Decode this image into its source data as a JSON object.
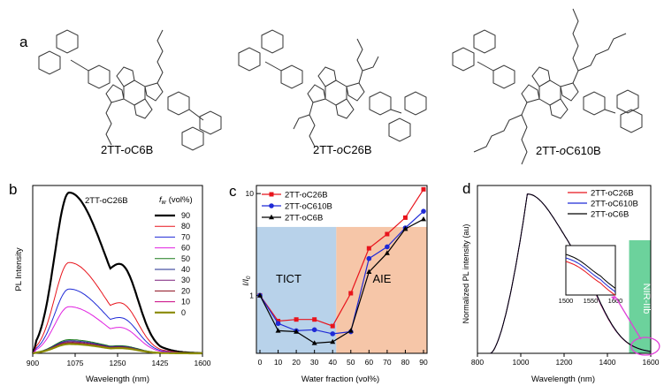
{
  "panels": {
    "a": "a",
    "b": "b",
    "c": "c",
    "d": "d"
  },
  "compounds": {
    "c1": {
      "prefix": "2TT-",
      "italic": "o",
      "suffix": "C6B"
    },
    "c2": {
      "prefix": "2TT-",
      "italic": "o",
      "suffix": "C26B"
    },
    "c3": {
      "prefix": "2TT-",
      "italic": "o",
      "suffix": "C610B"
    }
  },
  "colors": {
    "red": "#e8141c",
    "blue": "#1f2ad6",
    "black": "#000000",
    "tict_bg": "#b8d2ea",
    "aie_bg": "#f6c6a8",
    "nir_bg": "#6cd29c",
    "pink": "#e040d8"
  },
  "chart_data": [
    {
      "id": "b",
      "type": "line",
      "title": "2TT-oC26B",
      "xlabel": "Wavelength (nm)",
      "ylabel": "PL Intensity",
      "xlim": [
        900,
        1600
      ],
      "ylim": [
        0,
        1
      ],
      "xticks": [
        "900",
        "1075",
        "1250",
        "1425",
        "1600"
      ],
      "legend_title_prefix": "f",
      "legend_title_sub": "w",
      "legend_title_suffix": "(vol%)",
      "series": [
        {
          "name": "90",
          "color": "#000000",
          "width": 2.2,
          "peak": 1.0
        },
        {
          "name": "80",
          "color": "#e8141c",
          "width": 1,
          "peak": 0.565
        },
        {
          "name": "70",
          "color": "#1f2ad6",
          "width": 1,
          "peak": 0.4
        },
        {
          "name": "60",
          "color": "#e020e0",
          "width": 1,
          "peak": 0.29
        },
        {
          "name": "50",
          "color": "#1a7a1a",
          "width": 1,
          "peak": 0.085
        },
        {
          "name": "40",
          "color": "#1c2a8c",
          "width": 1,
          "peak": 0.078
        },
        {
          "name": "30",
          "color": "#7a1f7a",
          "width": 1,
          "peak": 0.072
        },
        {
          "name": "20",
          "color": "#8b0a1a",
          "width": 1,
          "peak": 0.066
        },
        {
          "name": "10",
          "color": "#c80080",
          "width": 1,
          "peak": 0.062
        },
        {
          "name": "0",
          "color": "#8a8a00",
          "width": 2.2,
          "peak": 0.058
        }
      ]
    },
    {
      "id": "c",
      "type": "line",
      "xlabel": "Water fraction (vol%)",
      "ylabel_main": "I/I",
      "ylabel_sub": "0",
      "xlim": [
        0,
        90
      ],
      "ylim": [
        0.27,
        12
      ],
      "yscale": "log",
      "xticks": [
        "0",
        "10",
        "20",
        "30",
        "40",
        "50",
        "60",
        "70",
        "80",
        "90"
      ],
      "yticks": [
        "1",
        "10"
      ],
      "regions": [
        {
          "label": "TICT",
          "from": 0,
          "to": 42,
          "color": "#b8d2ea"
        },
        {
          "label": "AIE",
          "from": 42,
          "to": 90,
          "color": "#f6c6a8"
        }
      ],
      "x": [
        0,
        10,
        20,
        30,
        40,
        50,
        60,
        70,
        80,
        90
      ],
      "series": [
        {
          "name": "2TT-oC26B",
          "color": "#e8141c",
          "marker": "square",
          "values": [
            1.0,
            0.56,
            0.58,
            0.58,
            0.5,
            1.05,
            2.9,
            4.0,
            5.8,
            11.0
          ]
        },
        {
          "name": "2TT-oC610B",
          "color": "#1f2ad6",
          "marker": "circle",
          "values": [
            1.0,
            0.53,
            0.45,
            0.46,
            0.42,
            0.44,
            2.3,
            3.0,
            4.6,
            6.7
          ]
        },
        {
          "name": "2TT-oC6B",
          "color": "#000000",
          "marker": "triangle",
          "values": [
            1.0,
            0.45,
            0.44,
            0.34,
            0.35,
            0.45,
            1.7,
            2.6,
            4.5,
            5.6
          ]
        }
      ]
    },
    {
      "id": "d",
      "type": "line",
      "xlabel": "Wavelength (nm)",
      "ylabel": "Normalized PL intensity (au)",
      "xlim": [
        800,
        1600
      ],
      "ylim": [
        0,
        1
      ],
      "xticks": [
        "800",
        "1000",
        "1200",
        "1400",
        "1600"
      ],
      "band_label": "NIR-IIb",
      "band_from": 1500,
      "band_to": 1600,
      "inset": {
        "xlim": [
          1500,
          1600
        ],
        "xticks": [
          "1500",
          "1550",
          "1600"
        ]
      },
      "series": [
        {
          "name": "2TT-oC26B",
          "color": "#e8141c"
        },
        {
          "name": "2TT-oC610B",
          "color": "#1f2ad6"
        },
        {
          "name": "2TT-oC6B",
          "color": "#000000"
        }
      ]
    }
  ]
}
